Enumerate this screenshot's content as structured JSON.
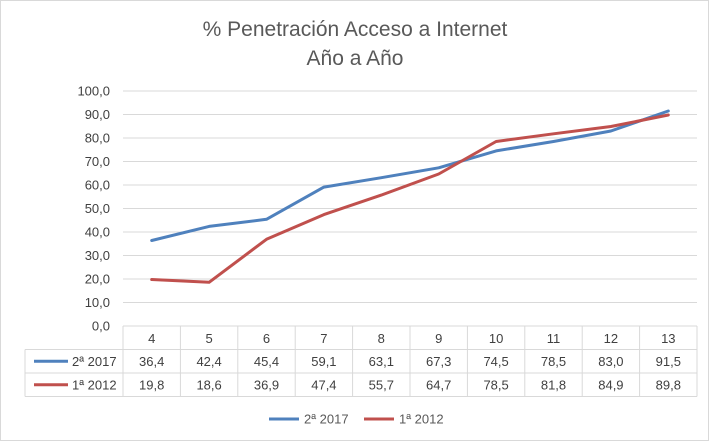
{
  "chart_data": {
    "type": "line",
    "title": [
      "% Penetración Acceso a Internet",
      "Año a Año"
    ],
    "categories": [
      "4",
      "5",
      "6",
      "7",
      "8",
      "9",
      "10",
      "11",
      "12",
      "13"
    ],
    "ylim": [
      0,
      100
    ],
    "yticks": [
      "0,0",
      "10,0",
      "20,0",
      "30,0",
      "40,0",
      "50,0",
      "60,0",
      "70,0",
      "80,0",
      "90,0",
      "100,0"
    ],
    "grid": true,
    "legend_position": "bottom",
    "data_table": true,
    "series": [
      {
        "name": "2ª 2017",
        "color": "#4f81bd",
        "values": [
          36.4,
          42.4,
          45.4,
          59.1,
          63.1,
          67.3,
          74.5,
          78.5,
          83.0,
          91.5
        ],
        "labels": [
          "36,4",
          "42,4",
          "45,4",
          "59,1",
          "63,1",
          "67,3",
          "74,5",
          "78,5",
          "83,0",
          "91,5"
        ]
      },
      {
        "name": "1ª 2012",
        "color": "#c0504d",
        "values": [
          19.8,
          18.6,
          36.9,
          47.4,
          55.7,
          64.7,
          78.5,
          81.8,
          84.9,
          89.8
        ],
        "labels": [
          "19,8",
          "18,6",
          "36,9",
          "47,4",
          "55,7",
          "64,7",
          "78,5",
          "81,8",
          "84,9",
          "89,8"
        ]
      }
    ]
  }
}
